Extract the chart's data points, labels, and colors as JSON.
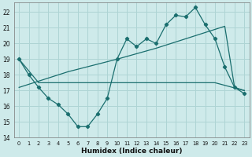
{
  "xlabel": "Humidex (Indice chaleur)",
  "ylabel": "",
  "bg_color": "#ceeaea",
  "grid_color": "#aed4d4",
  "line_color": "#1a6e6e",
  "xlim": [
    -0.5,
    23.5
  ],
  "ylim": [
    14,
    22.6
  ],
  "yticks": [
    14,
    15,
    16,
    17,
    18,
    19,
    20,
    21,
    22
  ],
  "xticks": [
    0,
    1,
    2,
    3,
    4,
    5,
    6,
    7,
    8,
    9,
    10,
    11,
    12,
    13,
    14,
    15,
    16,
    17,
    18,
    19,
    20,
    21,
    22,
    23
  ],
  "line1_x": [
    0,
    1,
    2,
    3,
    4,
    5,
    6,
    7,
    8,
    9,
    10,
    11,
    12,
    13,
    14,
    15,
    16,
    17,
    18,
    19,
    20,
    21,
    22,
    23
  ],
  "line1_y": [
    19.0,
    18.0,
    17.2,
    16.5,
    16.1,
    15.5,
    14.7,
    14.7,
    15.5,
    16.5,
    19.0,
    20.3,
    19.8,
    20.3,
    20.0,
    21.2,
    21.8,
    21.7,
    22.3,
    21.2,
    20.3,
    18.5,
    17.2,
    16.8
  ],
  "line2_x": [
    0,
    2,
    3,
    10,
    14,
    15,
    16,
    20,
    23
  ],
  "line2_y": [
    19.0,
    17.5,
    17.5,
    17.5,
    17.5,
    17.5,
    17.5,
    17.5,
    17.0
  ],
  "line3_x": [
    0,
    1,
    2,
    3,
    4,
    5,
    10,
    14,
    15,
    16,
    17,
    18,
    19,
    20,
    21,
    22,
    23
  ],
  "line3_y": [
    17.2,
    17.4,
    17.6,
    17.8,
    18.0,
    18.2,
    19.0,
    19.7,
    19.9,
    20.1,
    20.3,
    20.5,
    20.7,
    20.9,
    21.1,
    17.2,
    17.0
  ]
}
